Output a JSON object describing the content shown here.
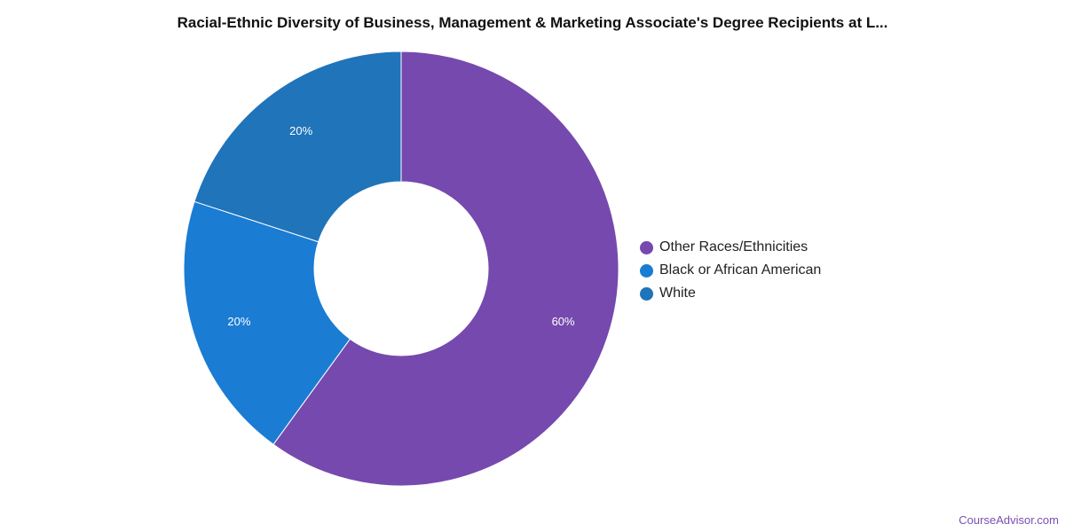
{
  "chart_data": {
    "type": "pie",
    "title": "Racial-Ethnic Diversity of Business, Management & Marketing Associate's Degree Recipients at L...",
    "slices": [
      {
        "label": "Other Races/Ethnicities",
        "value": 60,
        "display": "60%",
        "color": "#7649ae"
      },
      {
        "label": "Black or African American",
        "value": 20,
        "display": "20%",
        "color": "#1a7cd3"
      },
      {
        "label": "White",
        "value": 20,
        "display": "20%",
        "color": "#1f74ba"
      }
    ],
    "legend_position": "right"
  },
  "legend": {
    "items": [
      {
        "label": "Other Races/Ethnicities",
        "color": "#7649ae"
      },
      {
        "label": "Black or African American",
        "color": "#1a7cd3"
      },
      {
        "label": "White",
        "color": "#1f74ba"
      }
    ]
  },
  "footer": {
    "brand": "CourseAdvisor.com"
  }
}
